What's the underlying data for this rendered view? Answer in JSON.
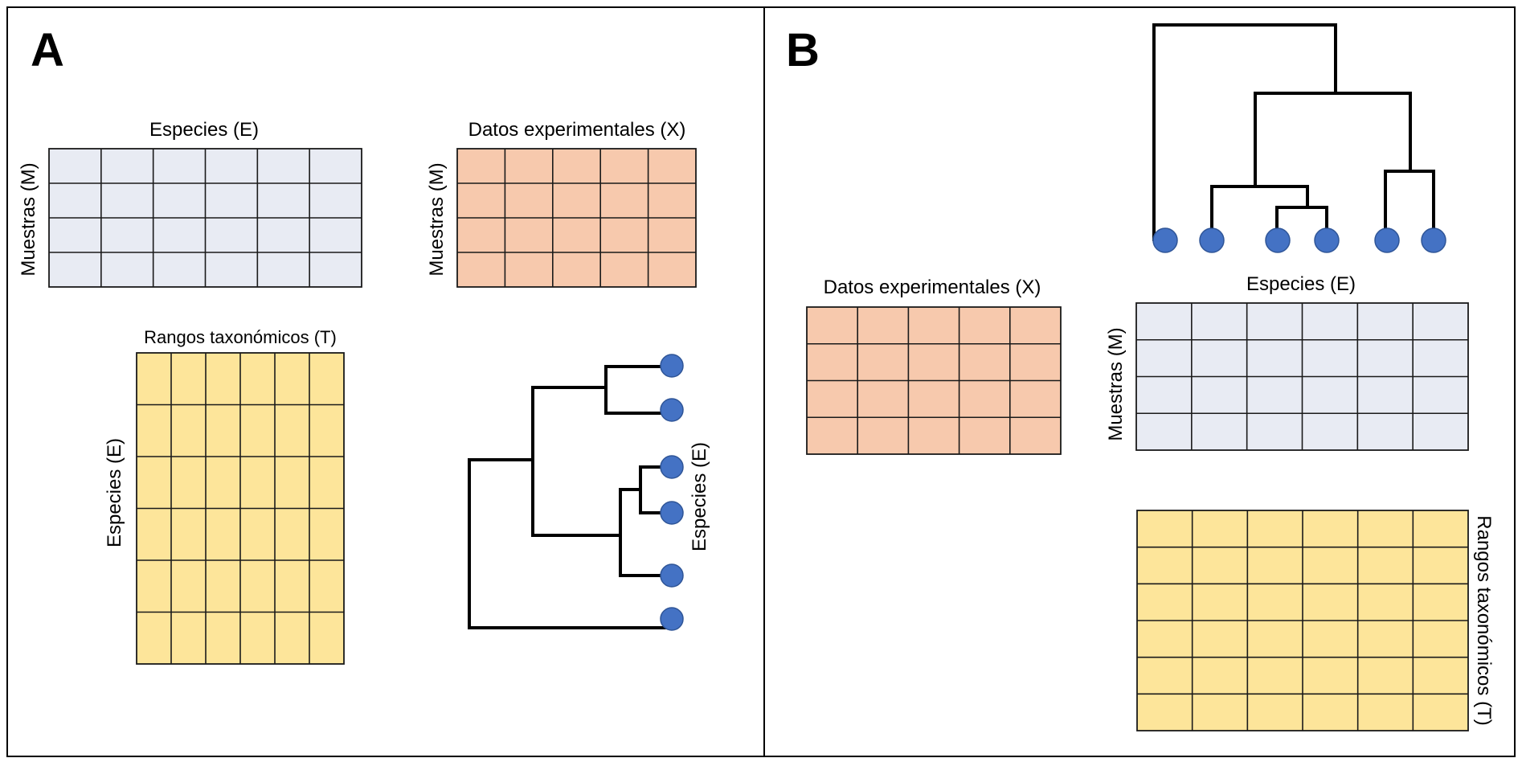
{
  "panels": {
    "a": {
      "letter": "A"
    },
    "b": {
      "letter": "B"
    }
  },
  "colors": {
    "species_matrix": "#e8ebf3",
    "data_matrix": "#f7c9ad",
    "taxonomy_matrix": "#fde59a",
    "tree_tip": "#4472c4",
    "line": "#000000"
  },
  "labels": {
    "species": "Especies (E)",
    "samples": "Muestras (M)",
    "experimental_data": "Datos experimentales (X)",
    "taxonomic_ranks": "Rangos taxonómicos (T)"
  },
  "matrices": {
    "a_species": {
      "rows": 4,
      "cols": 6
    },
    "a_data": {
      "rows": 4,
      "cols": 5
    },
    "a_taxonomy": {
      "rows": 6,
      "cols": 6
    },
    "b_data": {
      "rows": 4,
      "cols": 5
    },
    "b_species": {
      "rows": 4,
      "cols": 6
    },
    "b_taxonomy": {
      "rows": 6,
      "cols": 6
    }
  },
  "trees": {
    "a_tip_count": 6,
    "b_tip_count": 6
  }
}
